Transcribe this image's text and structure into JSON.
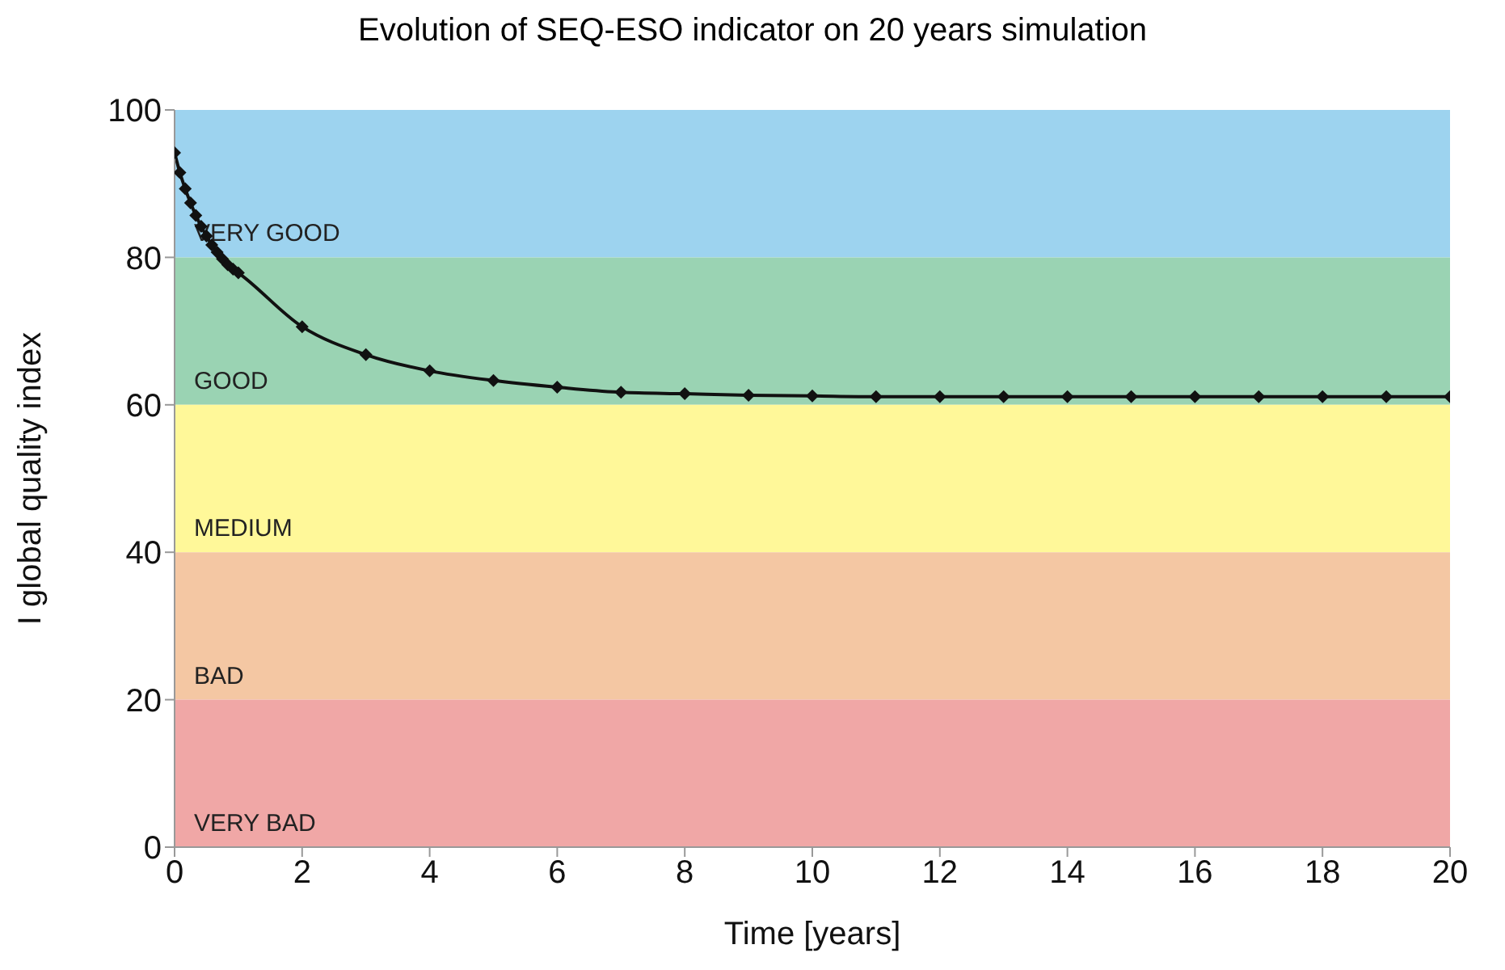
{
  "chart_data": {
    "type": "line",
    "title": "Evolution of SEQ-ESO indicator on 20 years simulation",
    "xlabel": "Time [years]",
    "ylabel": "I global quality index",
    "xlim": [
      0,
      20
    ],
    "xticks": [
      0,
      2,
      4,
      6,
      8,
      10,
      12,
      14,
      16,
      18,
      20
    ],
    "ylim": [
      0,
      100
    ],
    "yticks": [
      0,
      20,
      40,
      60,
      80,
      100
    ],
    "grid": false,
    "legend": false,
    "marker": "diamond",
    "line_style": "solid",
    "series": [
      {
        "color": "#111111",
        "x": [
          0,
          0.083,
          0.167,
          0.25,
          0.333,
          0.417,
          0.5,
          0.583,
          0.667,
          0.75,
          0.833,
          0.917,
          1,
          2,
          3,
          4,
          5,
          6,
          7,
          8,
          9,
          10,
          11,
          12,
          13,
          14,
          15,
          16,
          17,
          18,
          19,
          20
        ],
        "values": [
          94.2,
          91.5,
          89.3,
          87.4,
          85.7,
          84.2,
          82.9,
          81.7,
          80.7,
          79.8,
          79.0,
          78.4,
          77.9,
          70.6,
          66.8,
          64.6,
          63.3,
          62.4,
          61.7,
          61.5,
          61.3,
          61.2,
          61.1,
          61.1,
          61.1,
          61.1,
          61.1,
          61.1,
          61.1,
          61.1,
          61.1,
          61.1
        ]
      }
    ],
    "bands": [
      {
        "axis": "y",
        "from": 80,
        "to": 100,
        "label": "VERY GOOD",
        "color": "#9dd3ef"
      },
      {
        "axis": "y",
        "from": 60,
        "to": 80,
        "label": "GOOD",
        "color": "#9ad3b3"
      },
      {
        "axis": "y",
        "from": 40,
        "to": 60,
        "label": "MEDIUM",
        "color": "#fff899"
      },
      {
        "axis": "y",
        "from": 20,
        "to": 40,
        "label": "BAD",
        "color": "#f4c7a3"
      },
      {
        "axis": "y",
        "from": 0,
        "to": 20,
        "label": "VERY BAD",
        "color": "#f0a7a6"
      }
    ]
  }
}
